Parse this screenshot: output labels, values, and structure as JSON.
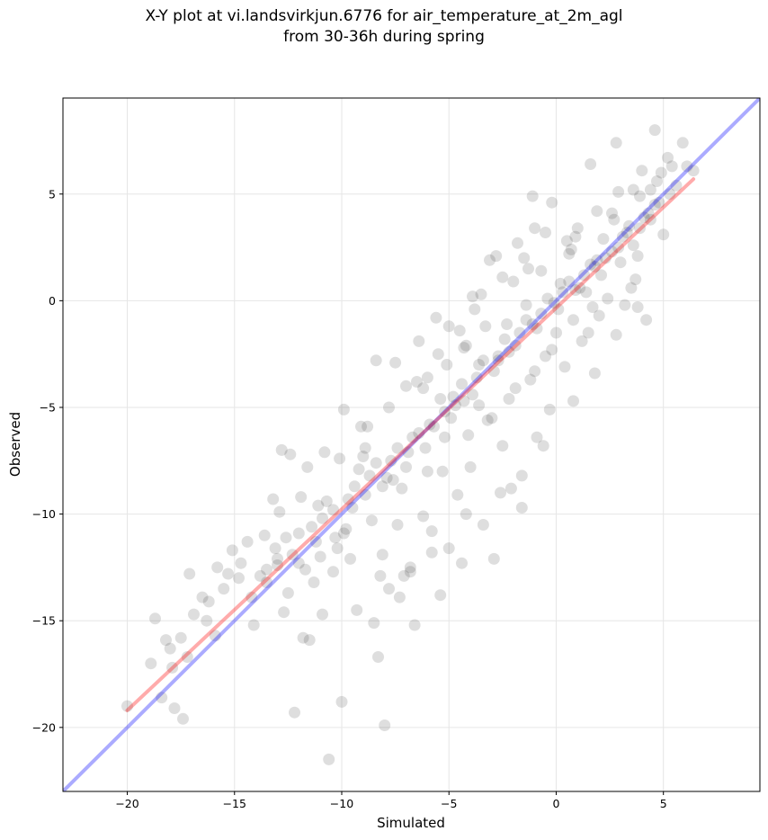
{
  "chart_data": {
    "type": "scatter",
    "title_line1": "X-Y plot at vi.landsvirkjun.6776 for air_temperature_at_2m_agl",
    "title_line2": "from 30-36h during spring",
    "xlabel": "Simulated",
    "ylabel": "Observed",
    "xlim": [
      -23,
      9.5
    ],
    "ylim": [
      -23,
      9.5
    ],
    "xticks": [
      -20,
      -15,
      -10,
      -5,
      0,
      5
    ],
    "yticks": [
      -20,
      -15,
      -10,
      -5,
      0,
      5
    ],
    "grid": true,
    "point_color": "#000000",
    "identity_line": {
      "color": "#0000ff",
      "from": [
        -23,
        -23
      ],
      "to": [
        9.5,
        9.5
      ]
    },
    "fit_line": {
      "color": "#ff0000",
      "from": [
        -20,
        -19.2
      ],
      "to": [
        6.4,
        5.7
      ]
    },
    "points": [
      [
        -20.0,
        -19.0
      ],
      [
        -18.9,
        -17.0
      ],
      [
        -18.7,
        -14.9
      ],
      [
        -18.2,
        -15.9
      ],
      [
        -18.0,
        -16.3
      ],
      [
        -17.8,
        -19.1
      ],
      [
        -17.4,
        -19.6
      ],
      [
        -17.5,
        -15.8
      ],
      [
        -17.2,
        -16.7
      ],
      [
        -17.1,
        -12.8
      ],
      [
        -16.9,
        -14.7
      ],
      [
        -16.5,
        -13.9
      ],
      [
        -16.2,
        -14.1
      ],
      [
        -15.9,
        -15.7
      ],
      [
        -15.8,
        -12.5
      ],
      [
        -15.3,
        -12.8
      ],
      [
        -15.1,
        -11.7
      ],
      [
        -14.7,
        -12.3
      ],
      [
        -14.4,
        -11.3
      ],
      [
        -14.1,
        -15.2
      ],
      [
        -13.6,
        -11.0
      ],
      [
        -13.5,
        -12.6
      ],
      [
        -13.2,
        -9.3
      ],
      [
        -13.0,
        -12.1
      ],
      [
        -12.8,
        -7.0
      ],
      [
        -12.7,
        -14.6
      ],
      [
        -12.4,
        -7.2
      ],
      [
        -12.2,
        -19.3
      ],
      [
        -12.0,
        -10.9
      ],
      [
        -11.8,
        -15.8
      ],
      [
        -11.6,
        -7.8
      ],
      [
        -11.5,
        -15.9
      ],
      [
        -11.3,
        -13.2
      ],
      [
        -11.1,
        -9.6
      ],
      [
        -10.9,
        -14.7
      ],
      [
        -10.6,
        -21.5
      ],
      [
        -10.4,
        -12.7
      ],
      [
        -10.2,
        -11.6
      ],
      [
        -10.0,
        -18.8
      ],
      [
        -9.9,
        -5.1
      ],
      [
        -9.5,
        -9.7
      ],
      [
        -9.3,
        -14.5
      ],
      [
        -9.0,
        -7.3
      ],
      [
        -8.9,
        -6.9
      ],
      [
        -8.5,
        -15.1
      ],
      [
        -8.3,
        -16.7
      ],
      [
        -8.4,
        -2.8
      ],
      [
        -8.0,
        -19.9
      ],
      [
        -8.1,
        -11.9
      ],
      [
        -7.8,
        -13.5
      ],
      [
        -7.6,
        -8.4
      ],
      [
        -7.3,
        -13.9
      ],
      [
        -7.1,
        -12.9
      ],
      [
        -7.0,
        -4.0
      ],
      [
        -6.8,
        -12.5
      ],
      [
        -6.6,
        -15.2
      ],
      [
        -6.4,
        -1.9
      ],
      [
        -6.2,
        -10.1
      ],
      [
        -6.0,
        -8.0
      ],
      [
        -5.8,
        -11.8
      ],
      [
        -5.6,
        -0.8
      ],
      [
        -5.4,
        -13.8
      ],
      [
        -5.2,
        -6.4
      ],
      [
        -5.0,
        -11.6
      ],
      [
        -4.8,
        -4.5
      ],
      [
        -4.6,
        -9.1
      ],
      [
        -4.4,
        -12.3
      ],
      [
        -4.2,
        -2.1
      ],
      [
        -4.0,
        -7.8
      ],
      [
        -3.8,
        -0.4
      ],
      [
        -3.6,
        -4.9
      ],
      [
        -3.4,
        -10.5
      ],
      [
        -3.2,
        -5.6
      ],
      [
        -3.1,
        1.9
      ],
      [
        -2.9,
        -12.1
      ],
      [
        -2.7,
        -2.8
      ],
      [
        -2.5,
        -6.8
      ],
      [
        -2.3,
        -1.1
      ],
      [
        -2.1,
        -8.8
      ],
      [
        -1.9,
        -4.1
      ],
      [
        -1.8,
        2.7
      ],
      [
        -1.6,
        -9.7
      ],
      [
        -1.4,
        -0.2
      ],
      [
        -1.2,
        -3.7
      ],
      [
        -1.1,
        4.9
      ],
      [
        -0.9,
        -6.4
      ],
      [
        -0.7,
        1.4
      ],
      [
        -0.5,
        -2.6
      ],
      [
        -0.3,
        -5.1
      ],
      [
        -0.2,
        4.6
      ],
      [
        0.0,
        -1.5
      ],
      [
        0.2,
        0.8
      ],
      [
        0.4,
        -3.1
      ],
      [
        0.6,
        2.2
      ],
      [
        0.8,
        -0.9
      ],
      [
        1.0,
        3.4
      ],
      [
        1.2,
        -1.9
      ],
      [
        1.4,
        0.4
      ],
      [
        1.6,
        6.4
      ],
      [
        1.8,
        1.6
      ],
      [
        2.0,
        -0.7
      ],
      [
        2.2,
        2.9
      ],
      [
        2.4,
        0.1
      ],
      [
        2.6,
        4.1
      ],
      [
        2.8,
        7.4
      ],
      [
        3.0,
        1.8
      ],
      [
        3.2,
        -0.2
      ],
      [
        3.4,
        3.5
      ],
      [
        3.6,
        5.2
      ],
      [
        3.8,
        2.1
      ],
      [
        4.0,
        6.1
      ],
      [
        4.2,
        -0.9
      ],
      [
        4.4,
        3.8
      ],
      [
        4.6,
        8.0
      ],
      [
        4.8,
        4.6
      ],
      [
        5.0,
        3.1
      ],
      [
        5.2,
        6.7
      ],
      [
        5.6,
        5.4
      ],
      [
        5.9,
        7.4
      ],
      [
        6.1,
        6.3
      ],
      [
        6.4,
        6.1
      ],
      [
        -14.2,
        -13.9
      ],
      [
        -13.8,
        -12.9
      ],
      [
        -13.0,
        -12.4
      ],
      [
        -12.6,
        -11.1
      ],
      [
        -12.0,
        -12.3
      ],
      [
        -11.4,
        -10.6
      ],
      [
        -10.9,
        -10.2
      ],
      [
        -10.4,
        -9.8
      ],
      [
        -9.9,
        -10.9
      ],
      [
        -9.4,
        -8.7
      ],
      [
        -8.9,
        -9.1
      ],
      [
        -8.4,
        -7.6
      ],
      [
        -7.9,
        -8.3
      ],
      [
        -7.4,
        -6.9
      ],
      [
        -6.9,
        -7.1
      ],
      [
        -6.4,
        -6.2
      ],
      [
        -5.9,
        -5.8
      ],
      [
        -5.4,
        -4.6
      ],
      [
        -4.9,
        -5.5
      ],
      [
        -4.4,
        -3.9
      ],
      [
        -3.9,
        -4.4
      ],
      [
        -3.4,
        -2.8
      ],
      [
        -2.9,
        -3.3
      ],
      [
        -2.4,
        -1.8
      ],
      [
        -1.9,
        -2.1
      ],
      [
        -1.4,
        -0.9
      ],
      [
        -0.9,
        -1.3
      ],
      [
        -0.4,
        0.1
      ],
      [
        0.1,
        -0.4
      ],
      [
        0.6,
        0.9
      ],
      [
        1.1,
        0.6
      ],
      [
        1.6,
        1.7
      ],
      [
        2.1,
        1.2
      ],
      [
        2.6,
        2.3
      ],
      [
        3.1,
        3.0
      ],
      [
        3.6,
        2.6
      ],
      [
        4.1,
        3.9
      ],
      [
        4.6,
        4.5
      ],
      [
        -13.5,
        -13.2
      ],
      [
        -12.3,
        -11.9
      ],
      [
        -11.7,
        -12.6
      ],
      [
        -10.7,
        -9.4
      ],
      [
        -9.7,
        -9.3
      ],
      [
        -8.7,
        -8.2
      ],
      [
        -7.7,
        -7.5
      ],
      [
        -6.7,
        -6.4
      ],
      [
        -5.7,
        -5.9
      ],
      [
        -4.7,
        -4.9
      ],
      [
        -3.7,
        -3.6
      ],
      [
        -2.7,
        -2.6
      ],
      [
        -1.7,
        -1.5
      ],
      [
        -0.7,
        -0.6
      ],
      [
        0.3,
        0.4
      ],
      [
        1.3,
        1.2
      ],
      [
        2.3,
        2.0
      ],
      [
        3.3,
        3.2
      ],
      [
        4.3,
        4.1
      ],
      [
        5.3,
        5.0
      ],
      [
        -8.6,
        -10.3
      ],
      [
        -7.2,
        -8.8
      ],
      [
        -6.2,
        -4.1
      ],
      [
        -5.1,
        -3.0
      ],
      [
        -4.1,
        -6.3
      ],
      [
        -3.3,
        -1.2
      ],
      [
        -2.2,
        -4.6
      ],
      [
        -1.3,
        1.5
      ],
      [
        -0.2,
        -2.3
      ],
      [
        0.7,
        2.4
      ],
      [
        1.7,
        -0.3
      ],
      [
        2.7,
        3.8
      ],
      [
        3.7,
        1.0
      ],
      [
        4.7,
        5.6
      ],
      [
        -9.2,
        -7.9
      ],
      [
        -6.0,
        -3.6
      ],
      [
        -4.3,
        -2.2
      ],
      [
        -2.0,
        0.9
      ],
      [
        0.9,
        3.0
      ],
      [
        2.9,
        5.1
      ],
      [
        4.9,
        6.0
      ],
      [
        -11.0,
        -12.0
      ],
      [
        -7.4,
        -10.5
      ],
      [
        -5.3,
        -8.0
      ],
      [
        -3.0,
        -5.5
      ],
      [
        -1.0,
        -3.3
      ],
      [
        1.5,
        -1.5
      ],
      [
        3.5,
        0.6
      ],
      [
        -15.5,
        -13.5
      ],
      [
        -16.3,
        -15.0
      ],
      [
        -17.9,
        -17.2
      ],
      [
        -18.4,
        -18.6
      ],
      [
        -14.8,
        -13.0
      ],
      [
        -12.9,
        -9.9
      ],
      [
        -11.9,
        -9.2
      ],
      [
        -10.1,
        -7.4
      ],
      [
        -8.8,
        -5.9
      ],
      [
        -7.8,
        -5.0
      ],
      [
        -6.5,
        -3.8
      ],
      [
        -5.5,
        -2.5
      ],
      [
        -4.5,
        -1.4
      ],
      [
        -3.5,
        0.3
      ],
      [
        -2.5,
        1.1
      ],
      [
        -1.5,
        2.0
      ],
      [
        -0.5,
        3.2
      ],
      [
        0.5,
        2.8
      ],
      [
        1.9,
        4.2
      ],
      [
        3.9,
        4.9
      ],
      [
        -9.6,
        -12.1
      ],
      [
        -8.2,
        -12.9
      ],
      [
        -6.8,
        -12.7
      ],
      [
        -5.8,
        -10.8
      ],
      [
        -4.2,
        -10.0
      ],
      [
        -2.6,
        -9.0
      ],
      [
        -1.6,
        -8.2
      ],
      [
        -0.6,
        -6.8
      ],
      [
        0.8,
        -4.7
      ],
      [
        1.8,
        -3.4
      ],
      [
        2.8,
        -1.6
      ],
      [
        3.8,
        -0.3
      ],
      [
        -10.8,
        -7.1
      ],
      [
        -9.1,
        -5.9
      ],
      [
        -7.5,
        -2.9
      ],
      [
        -5.0,
        -1.2
      ],
      [
        -3.9,
        0.2
      ],
      [
        -2.8,
        2.1
      ],
      [
        -1.0,
        3.4
      ],
      [
        -13.1,
        -11.6
      ],
      [
        -12.5,
        -13.7
      ],
      [
        -11.2,
        -11.3
      ],
      [
        -10.3,
        -11.1
      ],
      [
        -9.8,
        -10.7
      ],
      [
        -8.1,
        -8.7
      ],
      [
        -7.0,
        -7.8
      ],
      [
        -6.1,
        -6.9
      ],
      [
        -5.2,
        -5.2
      ],
      [
        -4.3,
        -4.7
      ],
      [
        -3.6,
        -3.0
      ],
      [
        -2.2,
        -2.4
      ],
      [
        -1.1,
        -1.1
      ],
      [
        -0.1,
        -0.1
      ],
      [
        0.9,
        0.5
      ],
      [
        1.9,
        1.9
      ],
      [
        2.9,
        2.5
      ],
      [
        3.9,
        3.4
      ],
      [
        4.4,
        5.2
      ],
      [
        5.4,
        6.3
      ]
    ]
  }
}
